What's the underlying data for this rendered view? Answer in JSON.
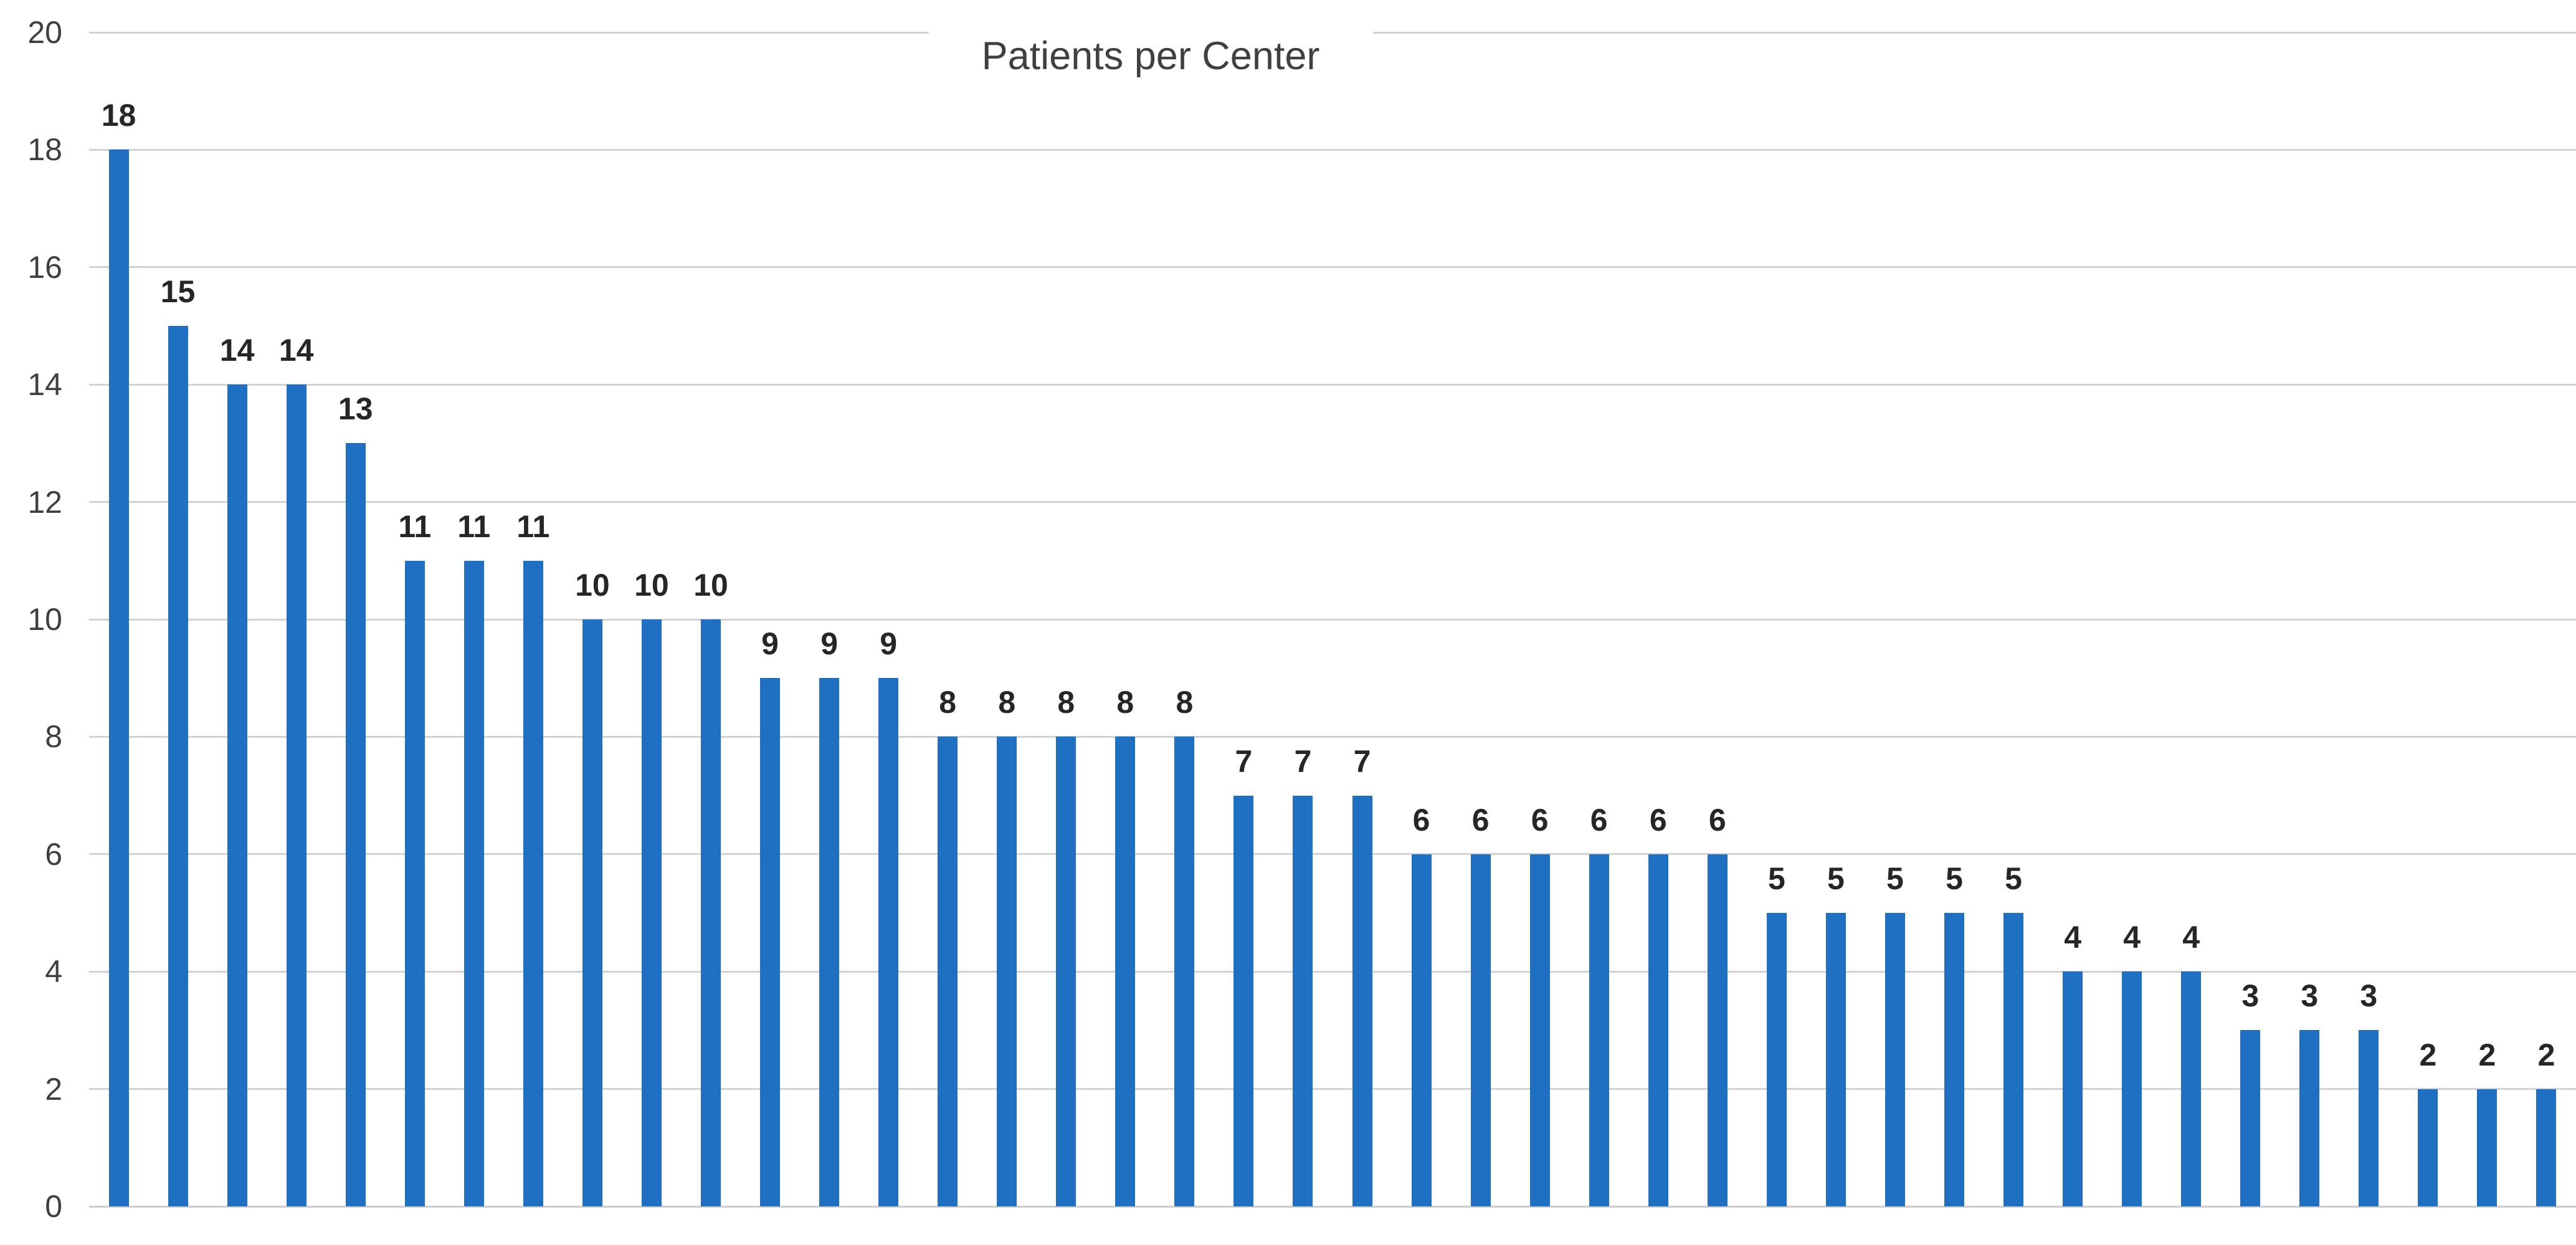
{
  "chart_data": {
    "type": "bar",
    "title": "Patients per Center",
    "values": [
      18,
      15,
      14,
      14,
      13,
      11,
      11,
      11,
      10,
      10,
      10,
      9,
      9,
      9,
      8,
      8,
      8,
      8,
      8,
      7,
      7,
      7,
      6,
      6,
      6,
      6,
      6,
      6,
      5,
      5,
      5,
      5,
      5,
      4,
      4,
      4,
      3,
      3,
      3,
      2,
      2,
      2
    ],
    "data_labels": [
      18,
      15,
      14,
      14,
      13,
      11,
      11,
      11,
      10,
      10,
      10,
      9,
      9,
      9,
      8,
      8,
      8,
      8,
      8,
      7,
      7,
      7,
      6,
      6,
      6,
      6,
      6,
      6,
      5,
      5,
      5,
      5,
      5,
      4,
      4,
      4,
      3,
      3,
      3,
      2,
      2,
      2
    ],
    "xlabel": "",
    "ylabel": "",
    "ylim": [
      0,
      20
    ],
    "yticks": [
      0,
      2,
      4,
      6,
      8,
      10,
      12,
      14,
      16,
      18,
      20
    ],
    "x_axis_labels_visible": false,
    "grid": true,
    "legend_visible": false,
    "colors": {
      "bar": "#1f70c2",
      "gridline": "#d2d2d2",
      "baseline": "#cccccc",
      "title_text": "#404040",
      "data_label_text": "#262626",
      "tick_label_text": "#3f3f3f",
      "background": "#ffffff"
    }
  }
}
